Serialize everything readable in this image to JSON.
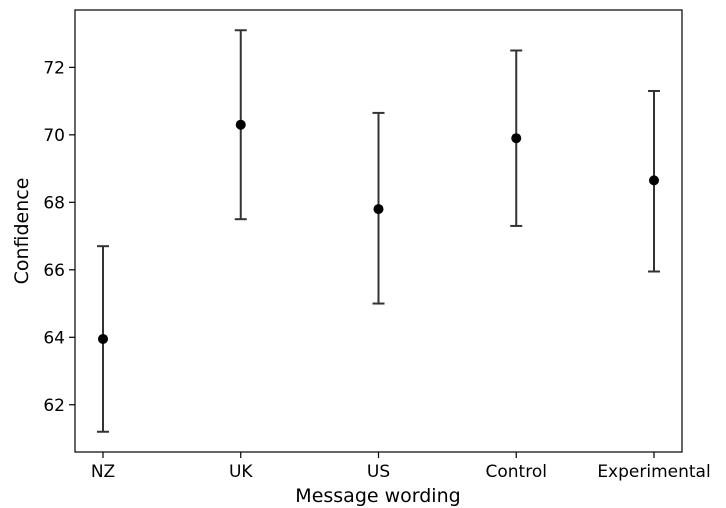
{
  "chart_data": {
    "type": "scatter",
    "title": "",
    "xlabel": "Message wording",
    "ylabel": "Confidence",
    "categories": [
      "NZ",
      "UK",
      "US",
      "Control",
      "Experimental"
    ],
    "values": [
      63.95,
      70.3,
      67.8,
      69.9,
      68.65
    ],
    "error_low": [
      61.2,
      67.5,
      65.0,
      67.3,
      65.95
    ],
    "error_high": [
      66.7,
      73.1,
      70.65,
      72.5,
      71.3
    ],
    "ylim": [
      60.6,
      73.7
    ],
    "yticks": [
      62,
      64,
      66,
      68,
      70,
      72
    ],
    "ytick_labels": [
      "62",
      "64",
      "66",
      "68",
      "70",
      "72"
    ],
    "grid": false,
    "marker_color": "#000000",
    "errorbar_color": "#333333"
  }
}
